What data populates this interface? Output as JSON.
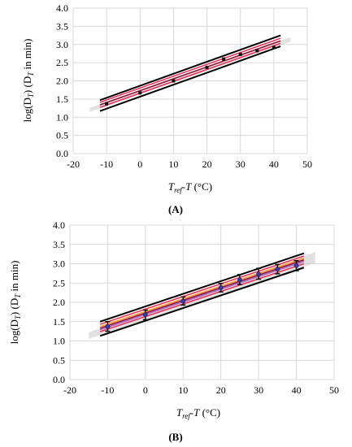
{
  "chart_data": [
    {
      "type": "scatter",
      "panel_label": "(A)",
      "ylabel": {
        "main": "log(D",
        "sub1": "T",
        "mid": ") (D",
        "sub2": "T",
        "tail": " in min)"
      },
      "xlabel": {
        "main1": "T",
        "sub": "ref",
        "main2": "-T",
        "tail": " (°C)"
      },
      "xlim": [
        -20,
        50
      ],
      "ylim": [
        0.0,
        4.0
      ],
      "x_ticks": [
        -20,
        -10,
        0,
        10,
        20,
        30,
        40,
        50
      ],
      "y_ticks": [
        "0.0",
        "0.5",
        "1.0",
        "1.5",
        "2.0",
        "2.5",
        "3.0",
        "3.5",
        "4.0"
      ],
      "grid": true,
      "points": [
        {
          "x": -10,
          "y": 1.37
        },
        {
          "x": 0,
          "y": 1.67
        },
        {
          "x": 10,
          "y": 2.0
        },
        {
          "x": 20,
          "y": 2.37
        },
        {
          "x": 25,
          "y": 2.6
        },
        {
          "x": 30,
          "y": 2.73
        },
        {
          "x": 35,
          "y": 2.83
        },
        {
          "x": 40,
          "y": 2.92
        }
      ],
      "error_bars": [],
      "fit_lines": [
        {
          "role": "upper-bound",
          "color": "#000000",
          "x": [
            -12,
            42
          ],
          "y": [
            1.47,
            3.25
          ]
        },
        {
          "role": "band-upper",
          "color": "#e8335a",
          "x": [
            -12,
            42
          ],
          "y": [
            1.41,
            3.17
          ]
        },
        {
          "role": "fit",
          "color": "#8b0f33",
          "x": [
            -12,
            42
          ],
          "y": [
            1.34,
            3.1
          ]
        },
        {
          "role": "band-lower",
          "color": "#e8335a",
          "x": [
            -12,
            42
          ],
          "y": [
            1.27,
            3.03
          ]
        },
        {
          "role": "lower-bound",
          "color": "#000000",
          "x": [
            -12,
            42
          ],
          "y": [
            1.17,
            2.95
          ]
        }
      ],
      "shade": {
        "color": "#c8c8c8",
        "x": [
          -15,
          45
        ],
        "y_low": [
          1.15,
          3.08
        ],
        "y_high": [
          1.26,
          3.2
        ]
      }
    },
    {
      "type": "scatter",
      "panel_label": "(B)",
      "ylabel": {
        "main": "log(D",
        "sub1": "T",
        "mid": ") (D",
        "sub2": "T",
        "tail": " in min)"
      },
      "xlabel": {
        "main1": "T",
        "sub": "ref",
        "main2": "-T",
        "tail": " (°C)"
      },
      "xlim": [
        -20,
        50
      ],
      "ylim": [
        0.0,
        4.0
      ],
      "x_ticks": [
        -20,
        -10,
        0,
        10,
        20,
        30,
        40,
        50
      ],
      "y_ticks": [
        "0.0",
        "0.5",
        "1.0",
        "1.5",
        "2.0",
        "2.5",
        "3.0",
        "3.5",
        "4.0"
      ],
      "grid": true,
      "points": [
        {
          "x": -10,
          "y": 1.37
        },
        {
          "x": 0,
          "y": 1.68
        },
        {
          "x": 10,
          "y": 2.03
        },
        {
          "x": 20,
          "y": 2.38
        },
        {
          "x": 25,
          "y": 2.58
        },
        {
          "x": 30,
          "y": 2.73
        },
        {
          "x": 35,
          "y": 2.86
        },
        {
          "x": 40,
          "y": 2.95
        }
      ],
      "error_bars": [
        {
          "x": -10,
          "low": 1.25,
          "high": 1.5
        },
        {
          "x": 0,
          "low": 1.55,
          "high": 1.8
        },
        {
          "x": 10,
          "low": 1.93,
          "high": 2.14
        },
        {
          "x": 20,
          "low": 2.27,
          "high": 2.49
        },
        {
          "x": 25,
          "low": 2.46,
          "high": 2.72
        },
        {
          "x": 30,
          "low": 2.6,
          "high": 2.88
        },
        {
          "x": 35,
          "low": 2.74,
          "high": 2.98
        },
        {
          "x": 40,
          "low": 2.82,
          "high": 3.08
        }
      ],
      "fit_lines": [
        {
          "role": "upper-bound",
          "color": "#000000",
          "x": [
            -12,
            42
          ],
          "y": [
            1.5,
            3.27
          ]
        },
        {
          "role": "band",
          "color": "#e8335a",
          "x": [
            -12,
            42
          ],
          "y": [
            1.43,
            3.2
          ]
        },
        {
          "role": "band",
          "color": "#ff9933",
          "x": [
            -12,
            42
          ],
          "y": [
            1.37,
            3.14
          ]
        },
        {
          "role": "fit",
          "color": "#8b0f33",
          "x": [
            -12,
            42
          ],
          "y": [
            1.33,
            3.1
          ]
        },
        {
          "role": "band",
          "color": "#b060c0",
          "x": [
            -12,
            42
          ],
          "y": [
            1.29,
            3.06
          ]
        },
        {
          "role": "band",
          "color": "#e8335a",
          "x": [
            -12,
            42
          ],
          "y": [
            1.24,
            3.0
          ]
        },
        {
          "role": "lower-bound",
          "color": "#000000",
          "x": [
            -12,
            42
          ],
          "y": [
            1.13,
            2.9
          ]
        }
      ],
      "shade": {
        "color": "#c8c8c8",
        "x": [
          -15,
          45
        ],
        "y_low": [
          1.05,
          3.02
        ],
        "y_high": [
          1.22,
          3.3
        ]
      }
    }
  ]
}
